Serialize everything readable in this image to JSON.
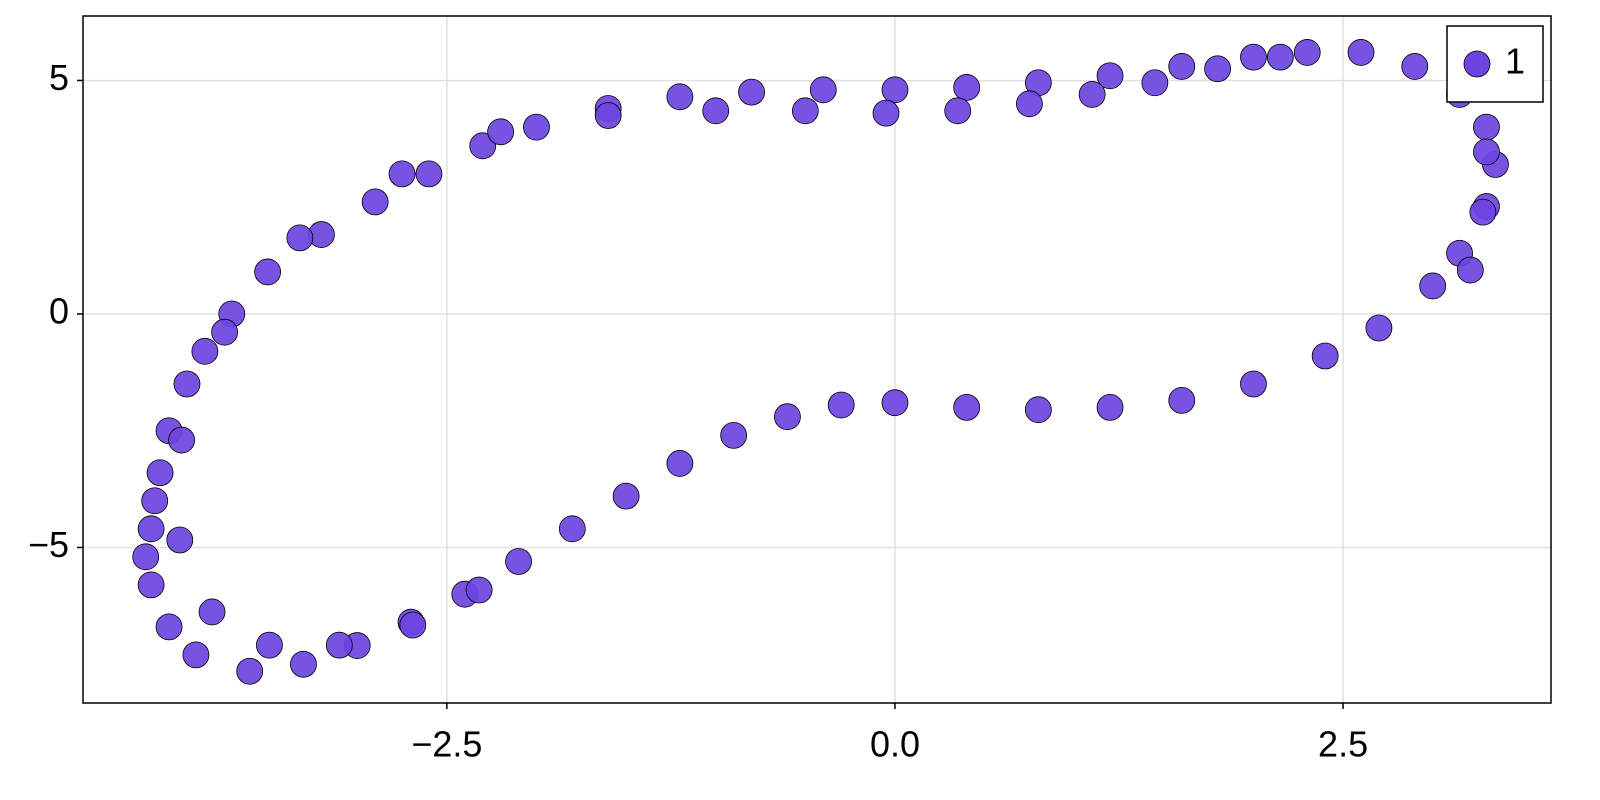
{
  "chart_data": {
    "type": "scatter",
    "xlim": [
      -4.53,
      3.66
    ],
    "ylim": [
      -8.33,
      6.38
    ],
    "xticks": [
      {
        "value": -2.5,
        "label": "−2.5"
      },
      {
        "value": 0,
        "label": "0.0"
      },
      {
        "value": 2.5,
        "label": "2.5"
      }
    ],
    "yticks": [
      {
        "value": -5,
        "label": "−5"
      },
      0,
      5
    ],
    "grid": true,
    "legend": "top-right",
    "series": [
      {
        "name": "1",
        "color": "#6d44e0",
        "x": [
          -4.15,
          -4.13,
          -4.1,
          -4.05,
          -3.95,
          -3.85,
          -3.7,
          -3.5,
          -3.2,
          -2.9,
          -2.6,
          -2.3,
          -2.0,
          -1.6,
          -1.2,
          -0.8,
          -0.4,
          0,
          0.4,
          0.8,
          1.2,
          1.6,
          2.0,
          2.3,
          2.6,
          2.9,
          3.15,
          3.3,
          3.35,
          3.3,
          3.15,
          3.0,
          2.7,
          2.4,
          2.0,
          1.6,
          1.2,
          0.8,
          0.4,
          0,
          -0.3,
          -0.6,
          -0.9,
          -1.2,
          -1.5,
          -1.8,
          -2.1,
          -2.4,
          -2.7,
          -3.0,
          -3.3,
          -3.6,
          -3.9,
          -4.05,
          -4.15,
          -4.18,
          -2.75,
          -2.2,
          -1.6,
          -1.0,
          -0.5,
          -0.05,
          0.35,
          0.75,
          1.1,
          1.45,
          1.8,
          2.15,
          -3.32,
          -3.74,
          -3.98,
          -3.99,
          -3.81,
          -3.49,
          -3.1,
          -2.69,
          -2.32,
          3.21,
          3.28,
          3.3
        ],
        "values": [
          -4.6,
          -4.0,
          -3.4,
          -2.5,
          -1.5,
          -0.8,
          0,
          0.9,
          1.7,
          2.4,
          3.0,
          3.6,
          4.0,
          4.4,
          4.65,
          4.75,
          4.8,
          4.8,
          4.85,
          4.95,
          5.1,
          5.3,
          5.5,
          5.6,
          5.6,
          5.3,
          4.7,
          4.0,
          3.2,
          2.3,
          1.3,
          0.6,
          -0.3,
          -0.9,
          -1.5,
          -1.85,
          -2.0,
          -2.05,
          -2.0,
          -1.9,
          -1.95,
          -2.2,
          -2.6,
          -3.2,
          -3.9,
          -4.6,
          -5.3,
          -6.0,
          -6.6,
          -7.1,
          -7.5,
          -7.65,
          -7.3,
          -6.7,
          -5.8,
          -5.2,
          3.0,
          3.9,
          4.25,
          4.35,
          4.35,
          4.3,
          4.35,
          4.5,
          4.7,
          4.95,
          5.25,
          5.5,
          1.63,
          -0.39,
          -2.7,
          -4.84,
          -6.38,
          -7.09,
          -7.09,
          -6.66,
          -5.91,
          0.94,
          2.18,
          3.47
        ]
      }
    ]
  }
}
